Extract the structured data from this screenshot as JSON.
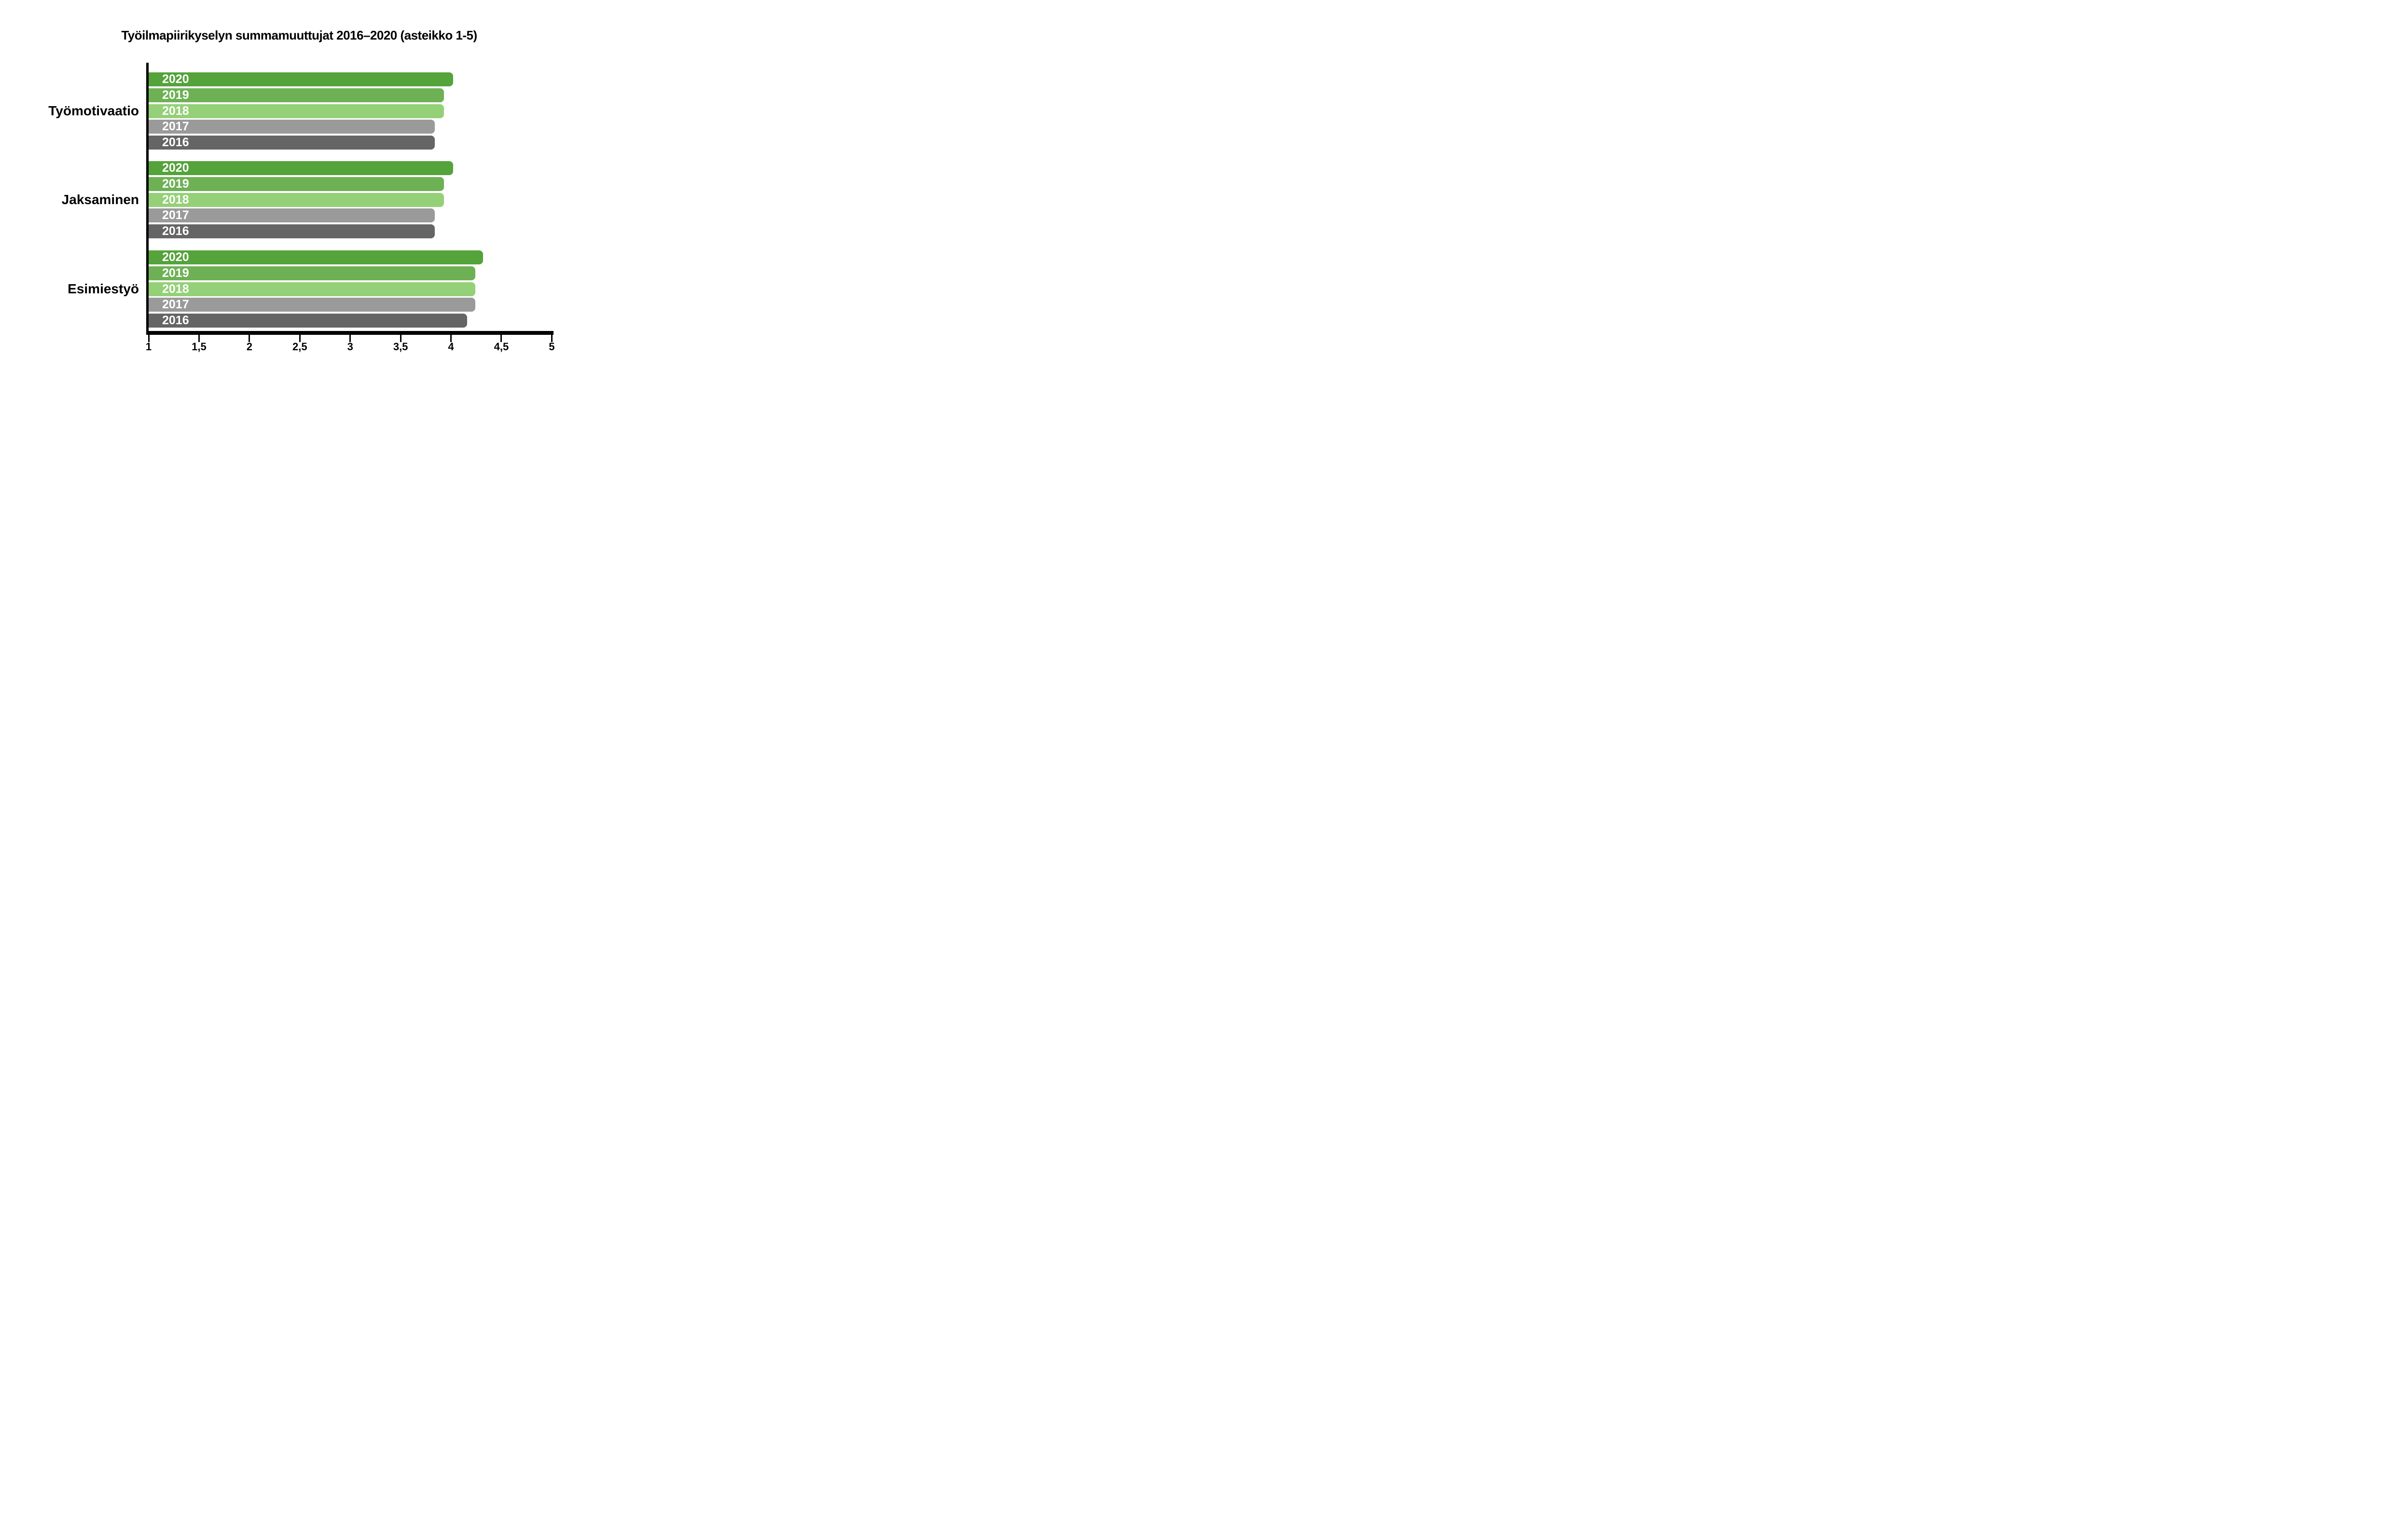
{
  "title": "Työilmapiirikyselyn summamuuttujat 2016–2020 (asteikko 1-5)",
  "chart_data": {
    "type": "bar",
    "orientation": "horizontal",
    "title": "Työilmapiirikyselyn summamuuttujat 2016–2020 (asteikko 1-5)",
    "categories": [
      "Työmotivaatio",
      "Jaksaminen",
      "Esimiestyö"
    ],
    "years_top_to_bottom": [
      "2020",
      "2019",
      "2018",
      "2017",
      "2016"
    ],
    "series": [
      {
        "name": "2020",
        "color": "#54a33b",
        "values": [
          4.02,
          4.02,
          4.32
        ]
      },
      {
        "name": "2019",
        "color": "#6eb155",
        "values": [
          3.93,
          3.93,
          4.24
        ]
      },
      {
        "name": "2018",
        "color": "#94d077",
        "values": [
          3.93,
          3.93,
          4.24
        ]
      },
      {
        "name": "2017",
        "color": "#9a9a9a",
        "values": [
          3.84,
          3.84,
          4.24
        ]
      },
      {
        "name": "2016",
        "color": "#656565",
        "values": [
          3.84,
          3.84,
          4.16
        ]
      }
    ],
    "xlim": [
      1,
      5
    ],
    "x_ticks": [
      1,
      1.5,
      2,
      2.5,
      3,
      3.5,
      4,
      4.5,
      5
    ],
    "x_tick_labels": [
      "1",
      "1,5",
      "2",
      "2,5",
      "3",
      "3,5",
      "4",
      "4,5",
      "5"
    ],
    "legend": "none",
    "grid": false,
    "axis_color": "#000000",
    "bar_label_color": "#ffffff",
    "background_color": "#ffffff"
  }
}
